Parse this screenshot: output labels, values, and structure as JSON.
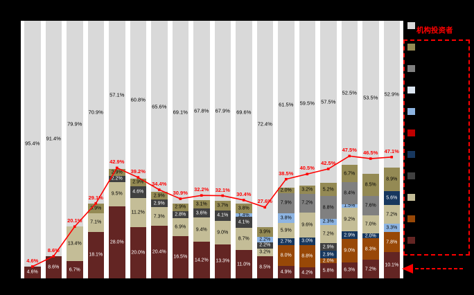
{
  "annotation": {
    "text": "机构投资者"
  },
  "chart_data": {
    "type": "bar",
    "subtype": "stacked-100pct-bar-with-line",
    "title": "",
    "unit": "%",
    "ylim": [
      0,
      100
    ],
    "legend_position": "right",
    "grid": false,
    "line_series": {
      "name": "institutional-total-line",
      "color": "#ff0000",
      "values": [
        4.6,
        8.6,
        20.1,
        29.1,
        42.9,
        39.2,
        34.4,
        30.9,
        32.2,
        32.1,
        30.4,
        27.6,
        38.5,
        40.5,
        42.5,
        47.5,
        46.5,
        47.1
      ]
    },
    "colors": {
      "maroon": "#632523",
      "brown": "#984807",
      "navy": "#17375e",
      "charcoal": "#404040",
      "tan": "#c4bd97",
      "ltblue": "#8db4e2",
      "medgray": "#808080",
      "olive": "#948a54",
      "gray": "#d9d9d9",
      "line": "#ff0000"
    },
    "dark_text_segments": [
      "maroon",
      "brown",
      "navy",
      "charcoal"
    ],
    "columns": [
      {
        "top": 95.4,
        "line": 4.6,
        "segments": [
          {
            "c": "maroon",
            "v": 4.6
          }
        ]
      },
      {
        "top": 91.4,
        "line": 8.6,
        "segments": [
          {
            "c": "maroon",
            "v": 8.6
          }
        ]
      },
      {
        "top": 79.9,
        "line": 20.1,
        "segments": [
          {
            "c": "maroon",
            "v": 6.7
          },
          {
            "c": "tan",
            "v": 13.4
          }
        ]
      },
      {
        "top": 70.9,
        "line": 29.1,
        "segments": [
          {
            "c": "maroon",
            "v": 18.1
          },
          {
            "c": "tan",
            "v": 7.1
          },
          {
            "c": "olive",
            "v": 3.9
          }
        ]
      },
      {
        "top": 57.1,
        "line": 42.9,
        "segments": [
          {
            "c": "maroon",
            "v": 28.0
          },
          {
            "c": "tan",
            "v": 9.5
          },
          {
            "c": "charcoal",
            "v": 2.2
          },
          {
            "c": "olive",
            "v": 2.9
          }
        ]
      },
      {
        "top": 60.8,
        "line": 39.2,
        "segments": [
          {
            "c": "maroon",
            "v": 20.0
          },
          {
            "c": "tan",
            "v": 11.2
          },
          {
            "c": "charcoal",
            "v": 4.6
          },
          {
            "c": "olive",
            "v": 2.9
          }
        ]
      },
      {
        "top": 65.6,
        "line": 34.4,
        "segments": [
          {
            "c": "maroon",
            "v": 20.4
          },
          {
            "c": "tan",
            "v": 7.3
          },
          {
            "c": "charcoal",
            "v": 2.9
          },
          {
            "c": "olive",
            "v": 2.9
          }
        ]
      },
      {
        "top": 69.1,
        "line": 30.9,
        "segments": [
          {
            "c": "maroon",
            "v": 16.5
          },
          {
            "c": "tan",
            "v": 6.9
          },
          {
            "c": "charcoal",
            "v": 2.8
          },
          {
            "c": "olive",
            "v": 2.9
          }
        ]
      },
      {
        "top": 67.8,
        "line": 32.2,
        "segments": [
          {
            "c": "maroon",
            "v": 14.2
          },
          {
            "c": "tan",
            "v": 9.4
          },
          {
            "c": "charcoal",
            "v": 3.6
          },
          {
            "c": "olive",
            "v": 3.1
          }
        ]
      },
      {
        "top": 67.9,
        "line": 32.1,
        "segments": [
          {
            "c": "maroon",
            "v": 13.3
          },
          {
            "c": "tan",
            "v": 9.0
          },
          {
            "c": "charcoal",
            "v": 4.1
          },
          {
            "c": "olive",
            "v": 3.7
          }
        ]
      },
      {
        "top": 69.6,
        "line": 30.4,
        "segments": [
          {
            "c": "maroon",
            "v": 11.0
          },
          {
            "c": "tan",
            "v": 8.7
          },
          {
            "c": "charcoal",
            "v": 4.1
          },
          {
            "c": "ltblue",
            "v": 1.4
          },
          {
            "c": "olive",
            "v": 3.8
          }
        ]
      },
      {
        "top": 72.4,
        "line": 27.6,
        "segments": [
          {
            "c": "maroon",
            "v": 8.5
          },
          {
            "c": "tan",
            "v": 3.2
          },
          {
            "c": "charcoal",
            "v": 2.2
          },
          {
            "c": "ltblue",
            "v": 2.2
          },
          {
            "c": "olive",
            "v": 3.9
          }
        ]
      },
      {
        "top": 61.5,
        "line": 38.5,
        "segments": [
          {
            "c": "maroon",
            "v": 4.9
          },
          {
            "c": "brown",
            "v": 8.0
          },
          {
            "c": "navy",
            "v": 2.7
          },
          {
            "c": "tan",
            "v": 5.9
          },
          {
            "c": "ltblue",
            "v": 3.8
          },
          {
            "c": "medgray",
            "v": 7.9
          },
          {
            "c": "olive",
            "v": 2.0
          }
        ]
      },
      {
        "top": 59.5,
        "line": 40.5,
        "segments": [
          {
            "c": "maroon",
            "v": 4.2
          },
          {
            "c": "brown",
            "v": 8.8
          },
          {
            "c": "navy",
            "v": 3.0
          },
          {
            "c": "tan",
            "v": 9.6
          },
          {
            "c": "medgray",
            "v": 7.2
          },
          {
            "c": "olive",
            "v": 3.2
          }
        ]
      },
      {
        "top": 57.5,
        "line": 42.5,
        "segments": [
          {
            "c": "maroon",
            "v": 5.8
          },
          {
            "c": "brown",
            "v": 2.0
          },
          {
            "c": "navy",
            "v": 2.9
          },
          {
            "c": "charcoal",
            "v": 2.9
          },
          {
            "c": "tan",
            "v": 7.2
          },
          {
            "c": "ltblue",
            "v": 2.3
          },
          {
            "c": "medgray",
            "v": 8.8
          },
          {
            "c": "olive",
            "v": 5.2
          }
        ]
      },
      {
        "top": 52.5,
        "line": 47.5,
        "segments": [
          {
            "c": "maroon",
            "v": 6.3
          },
          {
            "c": "brown",
            "v": 9.0
          },
          {
            "c": "navy",
            "v": 2.9
          },
          {
            "c": "tan",
            "v": 9.2
          },
          {
            "c": "ltblue",
            "v": 1.5
          },
          {
            "c": "medgray",
            "v": 8.4
          },
          {
            "c": "olive",
            "v": 6.7
          }
        ]
      },
      {
        "top": 53.5,
        "line": 46.5,
        "segments": [
          {
            "c": "maroon",
            "v": 7.2
          },
          {
            "c": "brown",
            "v": 8.3
          },
          {
            "c": "navy",
            "v": 2.0
          },
          {
            "c": "tan",
            "v": 7.0
          },
          {
            "c": "medgray",
            "v": 7.6
          },
          {
            "c": "olive",
            "v": 8.5
          }
        ]
      },
      {
        "top": 52.9,
        "line": 47.1,
        "segments": [
          {
            "c": "maroon",
            "v": 10.1
          },
          {
            "c": "brown",
            "v": 7.8
          },
          {
            "c": "ltblue",
            "v": 3.3
          },
          {
            "c": "tan",
            "v": 7.2
          },
          {
            "c": "navy",
            "v": 5.6
          },
          {
            "c": "olive",
            "v": 8.9
          }
        ]
      }
    ],
    "legend": {
      "swatches": [
        "#d9d9d9",
        "#948a54",
        "#808080",
        "#dbe5f1",
        "#8db4e2",
        "#c00000",
        "#17375e",
        "#404040",
        "#c4bd97",
        "#984807",
        "#632523"
      ],
      "box_color": "#ff0000"
    }
  }
}
